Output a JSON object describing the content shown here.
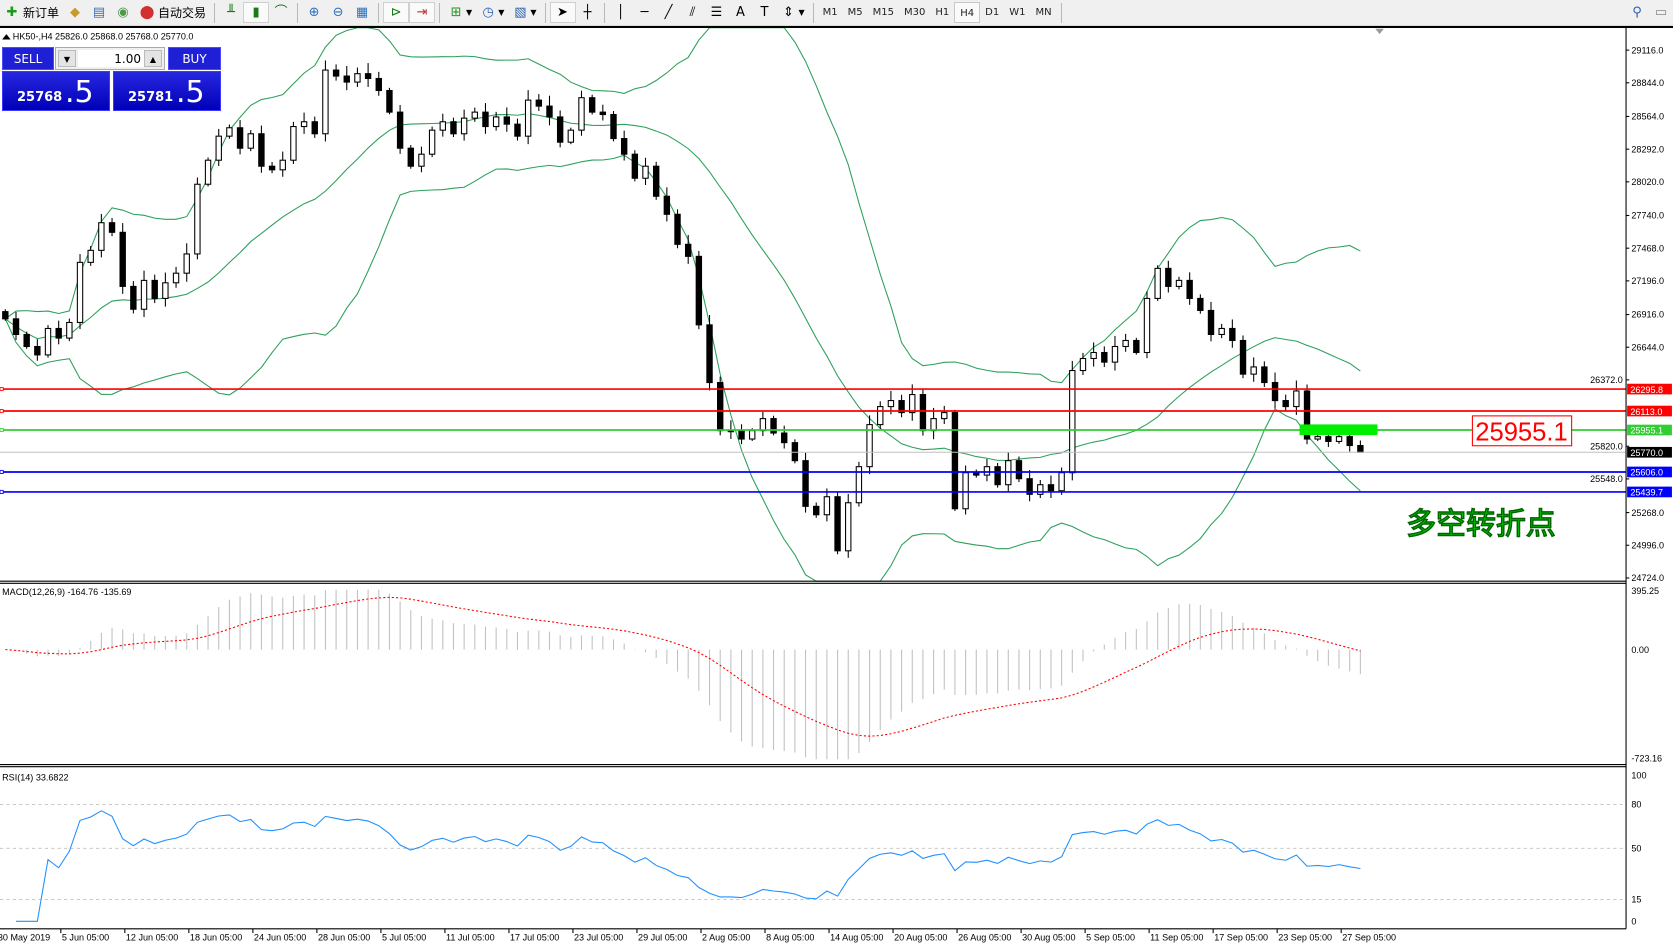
{
  "toolbar": {
    "items": [
      {
        "label": "新订单",
        "icon": "new-order-icon"
      },
      {
        "label": "",
        "icon": "market-watch-icon"
      },
      {
        "label": "",
        "icon": "navigator-icon"
      },
      {
        "label": "",
        "icon": "signals-icon"
      },
      {
        "label": "自动交易",
        "icon": "auto-trading-icon"
      }
    ],
    "chart_tools": [
      "bar-chart-icon",
      "candlestick-chart-icon",
      "line-chart-icon",
      "zoom-in-icon",
      "zoom-out-icon",
      "tile-windows-icon",
      "auto-scroll-icon",
      "chart-shift-icon",
      "indicators-icon",
      "periods-icon",
      "templates-icon"
    ],
    "draw_tools": [
      "cursor-icon",
      "crosshair-icon",
      "vertical-line-icon",
      "horizontal-line-icon",
      "trendline-icon",
      "fibonacci-icon",
      "fibo-levels-icon",
      "text-icon",
      "text-label-icon",
      "arrows-icon"
    ],
    "timeframes": [
      "M1",
      "M5",
      "M15",
      "M30",
      "H1",
      "H4",
      "D1",
      "W1",
      "MN"
    ],
    "active_timeframe": "H4"
  },
  "chart": {
    "header": "HK50-,H4  25826.0 25868.0 25768.0 25770.0",
    "trade_panel": {
      "sell_label": "SELL",
      "buy_label": "BUY",
      "lot": "1.00",
      "sell_price_main": "25768",
      "sell_price_big": ".5",
      "buy_price_main": "25781",
      "buy_price_big": ".5"
    },
    "price_axis_labels": [
      "29116.0",
      "28844.0",
      "28564.0",
      "28292.0",
      "28020.0",
      "27740.0",
      "27468.0",
      "27196.0",
      "26916.0",
      "26644.0",
      "26372.0",
      "25820.0",
      "25548.0",
      "25268.0",
      "24996.0",
      "24724.0"
    ],
    "time_labels": [
      "30 May 2019",
      "5 Jun 05:00",
      "12 Jun 05:00",
      "18 Jun 05:00",
      "24 Jun 05:00",
      "28 Jun 05:00",
      "5 Jul 05:00",
      "11 Jul 05:00",
      "17 Jul 05:00",
      "23 Jul 05:00",
      "29 Jul 05:00",
      "2 Aug 05:00",
      "8 Aug 05:00",
      "14 Aug 05:00",
      "20 Aug 05:00",
      "26 Aug 05:00",
      "30 Aug 05:00",
      "5 Sep 05:00",
      "11 Sep 05:00",
      "17 Sep 05:00",
      "23 Sep 05:00",
      "27 Sep 05:00"
    ],
    "hlines": [
      {
        "value": "26295.8",
        "color": "#ff0000",
        "text_color": "#ffffff"
      },
      {
        "value": "26113.0",
        "color": "#ff0000",
        "text_color": "#ffffff"
      },
      {
        "value": "25955.1",
        "color": "#32cd32",
        "text_color": "#ffffff"
      },
      {
        "value": "25770.0",
        "color": "#c0c0c0",
        "label_bg": "#000000",
        "text_color": "#ffffff"
      },
      {
        "value": "25606.0",
        "color": "#0000ff",
        "text_color": "#ffffff"
      },
      {
        "value": "25439.7",
        "color": "#0000ff",
        "text_color": "#ffffff"
      }
    ],
    "annotation_price_label": "25955.1",
    "annotation_text": "多空转折点",
    "colors": {
      "bands": "#2ca05a",
      "candle": "#000000",
      "zone": "#00ee00",
      "annotation": "#ff0000",
      "annotation_text": "#00c800"
    }
  },
  "macd": {
    "header": "MACD(12,26,9) -164.76 -135.69",
    "axis_labels": [
      "395.25",
      "0.00",
      "-723.16"
    ],
    "colors": {
      "histogram": "#c0c0c0",
      "signal": "#ff0000"
    }
  },
  "rsi": {
    "header": "RSI(14) 33.6822",
    "axis_labels": [
      "100",
      "80",
      "50",
      "15",
      "0"
    ],
    "color": "#1e90ff"
  },
  "chart_data": {
    "type": "candlestick",
    "symbol": "HK50-",
    "timeframe": "H4",
    "last_bar": {
      "open": 25826.0,
      "high": 25868.0,
      "low": 25768.0,
      "close": 25770.0
    },
    "ylim": [
      24724.0,
      29116.0
    ],
    "closes": [
      26880,
      26750,
      26650,
      26580,
      26800,
      26720,
      26850,
      27350,
      27450,
      27680,
      27600,
      27150,
      26960,
      27200,
      27050,
      27180,
      27260,
      27420,
      28000,
      28200,
      28400,
      28470,
      28300,
      28420,
      28150,
      28120,
      28200,
      28480,
      28520,
      28420,
      28950,
      28900,
      28850,
      28920,
      28880,
      28780,
      28600,
      28300,
      28150,
      28250,
      28450,
      28520,
      28420,
      28550,
      28600,
      28480,
      28560,
      28500,
      28400,
      28700,
      28650,
      28560,
      28350,
      28450,
      28720,
      28600,
      28580,
      28380,
      28250,
      28050,
      28150,
      27900,
      27750,
      27500,
      27400,
      26830,
      26350,
      25950,
      25950,
      25880,
      25950,
      26050,
      25930,
      25850,
      25700,
      25320,
      25250,
      25400,
      24950,
      25350,
      25650,
      26000,
      26150,
      26200,
      26100,
      26250,
      25950,
      26050,
      26100,
      25300,
      25600,
      25580,
      25650,
      25500,
      25700,
      25550,
      25420,
      25500,
      25450,
      25600,
      26450,
      26550,
      26600,
      26520,
      26650,
      26700,
      26600,
      27050,
      27300,
      27150,
      27200,
      27050,
      26950,
      26750,
      26800,
      26700,
      26420,
      26480,
      26350,
      26200,
      26150,
      26280,
      25880,
      25900,
      25860,
      25900,
      25826,
      25770
    ],
    "indicators": [
      "Bollinger Bands",
      "MACD(12,26,9)",
      "RSI(14)"
    ],
    "rsi_levels": [
      80,
      50,
      15
    ],
    "macd_ylim": [
      -723.16,
      395.25
    ],
    "rsi_ylim": [
      0,
      100
    ]
  }
}
